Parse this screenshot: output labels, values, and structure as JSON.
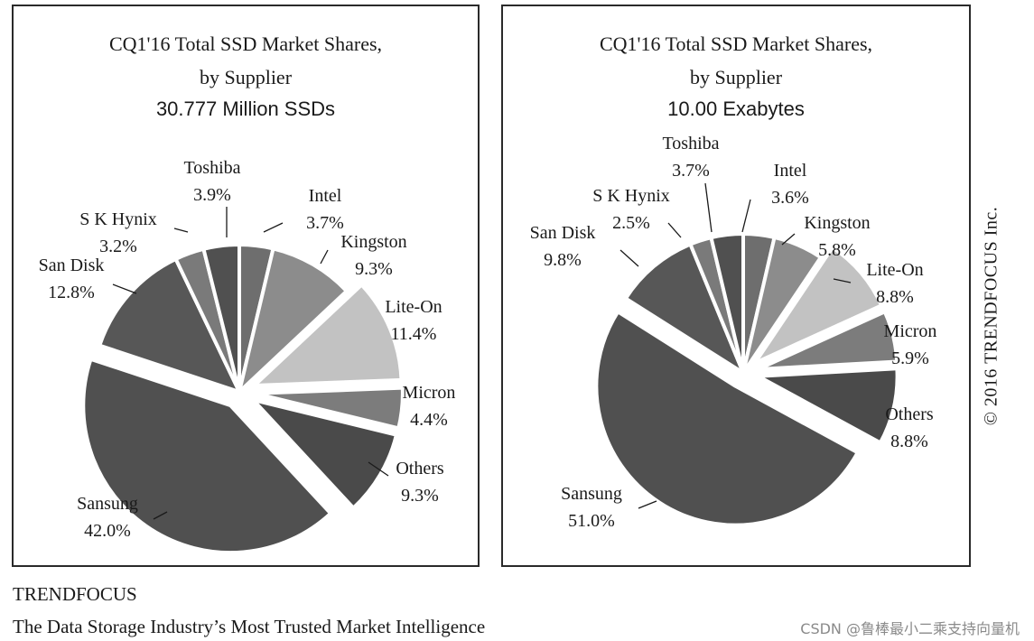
{
  "chart_data": [
    {
      "type": "pie",
      "title_line1": "CQ1'16 Total SSD Market Shares,",
      "title_line2": "by Supplier",
      "subtitle": "30.777 Million SSDs",
      "slices": [
        {
          "name": "Intel",
          "value": 3.7,
          "pct_label": "3.7%",
          "color": "#6e6e6e"
        },
        {
          "name": "Kingston",
          "value": 9.3,
          "pct_label": "9.3%",
          "color": "#8c8c8c"
        },
        {
          "name": "Lite-On",
          "value": 11.4,
          "pct_label": "11.4%",
          "color": "#c2c2c2"
        },
        {
          "name": "Micron",
          "value": 4.4,
          "pct_label": "4.4%",
          "color": "#7c7c7c"
        },
        {
          "name": "Others",
          "value": 9.3,
          "pct_label": "9.3%",
          "color": "#4a4a4a"
        },
        {
          "name": "Sansung",
          "value": 42.0,
          "pct_label": "42.0%",
          "color": "#505050"
        },
        {
          "name": "San Disk",
          "value": 12.8,
          "pct_label": "12.8%",
          "color": "#575757"
        },
        {
          "name": "S K Hynix",
          "value": 3.2,
          "pct_label": "3.2%",
          "color": "#7a7a7a"
        },
        {
          "name": "Toshiba",
          "value": 3.9,
          "pct_label": "3.9%",
          "color": "#505050"
        }
      ],
      "exploded": [
        "Lite-On",
        "Micron",
        "Others",
        "Sansung"
      ]
    },
    {
      "type": "pie",
      "title_line1": "CQ1'16 Total SSD Market Shares,",
      "title_line2": "by Supplier",
      "subtitle": "10.00 Exabytes",
      "slices": [
        {
          "name": "Intel",
          "value": 3.6,
          "pct_label": "3.6%",
          "color": "#6e6e6e"
        },
        {
          "name": "Kingston",
          "value": 5.8,
          "pct_label": "5.8%",
          "color": "#8c8c8c"
        },
        {
          "name": "Lite-On",
          "value": 8.8,
          "pct_label": "8.8%",
          "color": "#c2c2c2"
        },
        {
          "name": "Micron",
          "value": 5.9,
          "pct_label": "5.9%",
          "color": "#7c7c7c"
        },
        {
          "name": "Others",
          "value": 8.8,
          "pct_label": "8.8%",
          "color": "#4a4a4a"
        },
        {
          "name": "Sansung",
          "value": 51.0,
          "pct_label": "51.0%",
          "color": "#505050"
        },
        {
          "name": "San Disk",
          "value": 9.8,
          "pct_label": "9.8%",
          "color": "#575757"
        },
        {
          "name": "S K Hynix",
          "value": 2.5,
          "pct_label": "2.5%",
          "color": "#7a7a7a"
        },
        {
          "name": "Toshiba",
          "value": 3.7,
          "pct_label": "3.7%",
          "color": "#505050"
        }
      ],
      "exploded": [
        "Lite-On",
        "Micron",
        "Others",
        "Sansung"
      ]
    }
  ],
  "copyright": "© 2016 TRENDFOCUS Inc.",
  "footer": {
    "brand": "TRENDFOCUS",
    "tagline": "The Data Storage Industry’s Most Trusted Market Intelligence"
  },
  "watermark": "CSDN @鲁棒最小二乘支持向量机"
}
